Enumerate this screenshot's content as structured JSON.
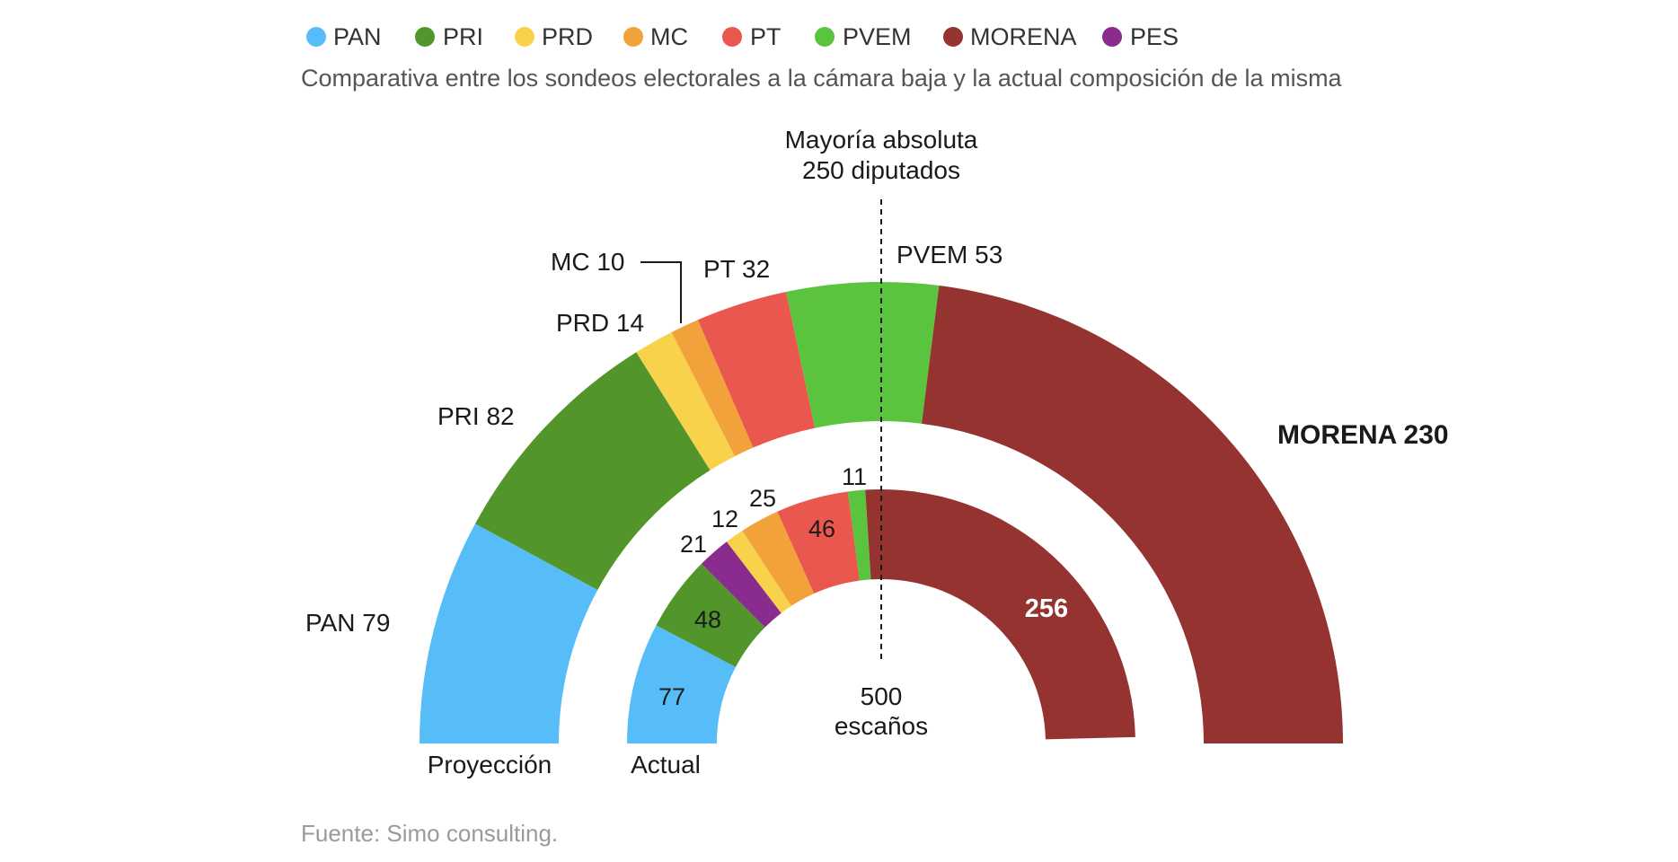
{
  "legend": [
    {
      "label": "PAN",
      "color": "#56bdf9"
    },
    {
      "label": "PRI",
      "color": "#52962b"
    },
    {
      "label": "PRD",
      "color": "#f7d24a"
    },
    {
      "label": "MC",
      "color": "#f2a23a"
    },
    {
      "label": "PT",
      "color": "#ea574e"
    },
    {
      "label": "PVEM",
      "color": "#5ac43e"
    },
    {
      "label": "MORENA",
      "color": "#943330"
    },
    {
      "label": "PES",
      "color": "#8a2b8e"
    }
  ],
  "subtitle": "Comparativa entre los sondeos electorales a la cámara baja y la actual composición de la misma",
  "majority": {
    "line1": "Mayoría absoluta",
    "line2": "250 diputados"
  },
  "center": {
    "line1": "500",
    "line2": "escaños"
  },
  "source": "Fuente: Simo consulting.",
  "chart_data": {
    "type": "semicircle-donut",
    "total_seats": 500,
    "majority_threshold": 250,
    "series": [
      {
        "name": "Proyección",
        "segments": [
          {
            "party": "PAN",
            "value": 79,
            "color": "#56bdf9",
            "label": "PAN 79"
          },
          {
            "party": "PRI",
            "value": 82,
            "color": "#52962b",
            "label": "PRI 82"
          },
          {
            "party": "PRD",
            "value": 14,
            "color": "#f7d24a",
            "label": "PRD 14"
          },
          {
            "party": "MC",
            "value": 10,
            "color": "#f2a23a",
            "label": "MC 10"
          },
          {
            "party": "PT",
            "value": 32,
            "color": "#ea574e",
            "label": "PT 32"
          },
          {
            "party": "PVEM",
            "value": 53,
            "color": "#5ac43e",
            "label": "PVEM 53"
          },
          {
            "party": "MORENA",
            "value": 230,
            "color": "#943330",
            "label": "MORENA 230"
          }
        ]
      },
      {
        "name": "Actual",
        "segments": [
          {
            "party": "PAN",
            "value": 77,
            "color": "#56bdf9",
            "label": "77"
          },
          {
            "party": "PRI",
            "value": 48,
            "color": "#52962b",
            "label": "48"
          },
          {
            "party": "PES",
            "value": 21,
            "color": "#8a2b8e",
            "label": "21"
          },
          {
            "party": "PRD",
            "value": 12,
            "color": "#f7d24a",
            "label": "12"
          },
          {
            "party": "MC",
            "value": 25,
            "color": "#f2a23a",
            "label": "25"
          },
          {
            "party": "PT",
            "value": 46,
            "color": "#ea574e",
            "label": "46"
          },
          {
            "party": "PVEM",
            "value": 11,
            "color": "#5ac43e",
            "label": "11"
          },
          {
            "party": "MORENA",
            "value": 256,
            "color": "#943330",
            "label": "256"
          }
        ]
      }
    ]
  }
}
